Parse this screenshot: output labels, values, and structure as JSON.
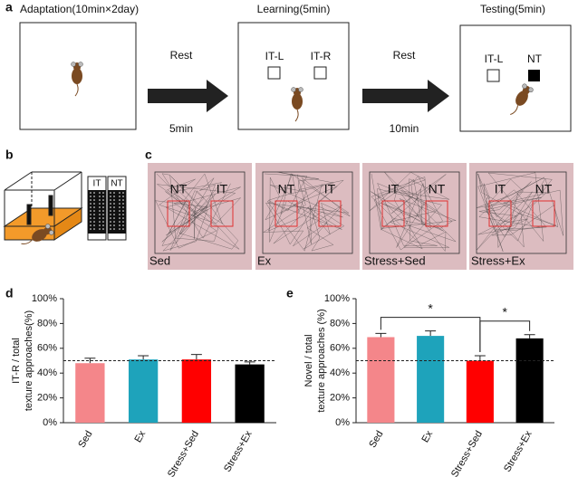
{
  "panel_labels": [
    "a",
    "b",
    "c",
    "d",
    "e"
  ],
  "panel_a": {
    "stages": [
      {
        "title": "Adaptation(10min×2day)"
      },
      {
        "title": "Learning(5min)",
        "objects": [
          "IT-L",
          "IT-R"
        ]
      },
      {
        "title": "Testing(5min)",
        "objects": [
          "IT-L",
          "NT"
        ]
      }
    ],
    "arrows": [
      {
        "label": "Rest",
        "duration": "5min"
      },
      {
        "label": "Rest",
        "duration": "10min"
      }
    ]
  },
  "panel_b": {
    "texture_labels": [
      "IT",
      "NT"
    ]
  },
  "panel_c": {
    "arenas": [
      {
        "condition": "Sed",
        "objects": [
          "NT",
          "IT"
        ]
      },
      {
        "condition": "Ex",
        "objects": [
          "NT",
          "IT"
        ]
      },
      {
        "condition": "Stress+Sed",
        "objects": [
          "IT",
          "NT"
        ]
      },
      {
        "condition": "Stress+Ex",
        "objects": [
          "IT",
          "NT"
        ]
      }
    ]
  },
  "chart_data": [
    {
      "type": "bar",
      "ylabel": [
        "IT-R / total",
        "texture approaches(%)"
      ],
      "categories": [
        "Sed",
        "Ex",
        "Stress+Sed",
        "Stress+Ex"
      ],
      "values": [
        48,
        51,
        51,
        47
      ],
      "errors": [
        4,
        3,
        4,
        2
      ],
      "colors": [
        "#f4868a",
        "#1ea3bb",
        "#ff0000",
        "#000000"
      ],
      "ylim": [
        0,
        100
      ],
      "yticks": [
        {
          "value": 0,
          "label": "0%"
        },
        {
          "value": 20,
          "label": "20%"
        },
        {
          "value": 40,
          "label": "40%"
        },
        {
          "value": 60,
          "label": "60%"
        },
        {
          "value": 80,
          "label": "80%"
        },
        {
          "value": 100,
          "label": "100%"
        }
      ],
      "reference_line": 50
    },
    {
      "type": "bar",
      "ylabel": [
        "Novel / total",
        "texture approaches (%)"
      ],
      "categories": [
        "Sed",
        "Ex",
        "Stress+Sed",
        "Stress+Ex"
      ],
      "values": [
        69,
        70,
        50,
        68
      ],
      "errors": [
        3,
        4,
        4,
        3
      ],
      "colors": [
        "#f4868a",
        "#1ea3bb",
        "#ff0000",
        "#000000"
      ],
      "ylim": [
        0,
        100
      ],
      "yticks": [
        {
          "value": 0,
          "label": "0%"
        },
        {
          "value": 20,
          "label": "20%"
        },
        {
          "value": 40,
          "label": "40%"
        },
        {
          "value": 60,
          "label": "60%"
        },
        {
          "value": 80,
          "label": "80%"
        },
        {
          "value": 100,
          "label": "100%"
        }
      ],
      "reference_line": 50,
      "significance": [
        {
          "pair": [
            0,
            2
          ],
          "label": "*"
        },
        {
          "pair": [
            2,
            3
          ],
          "label": "*"
        }
      ]
    }
  ]
}
